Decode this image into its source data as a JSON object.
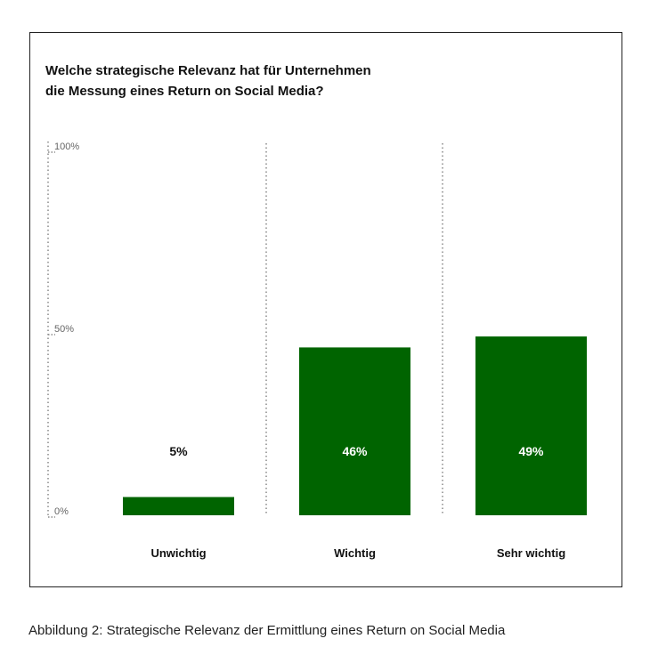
{
  "chart_data": {
    "type": "bar",
    "title": [
      "Welche strategische Relevanz hat für Unternehmen",
      "die Messung eines Return on Social Media?"
    ],
    "categories": [
      "Unwichtig",
      "Wichtig",
      "Sehr wichtig"
    ],
    "values": [
      5,
      46,
      49
    ],
    "value_labels": [
      "5%",
      "46%",
      "49%"
    ],
    "y_ticks": [
      {
        "value": 0,
        "label": "0%"
      },
      {
        "value": 50,
        "label": "50%"
      },
      {
        "value": 100,
        "label": "100%"
      }
    ],
    "ylim": [
      0,
      100
    ],
    "grid": "dotted vertical separators",
    "legend": "none",
    "colors": {
      "bar": "#006400",
      "label_inside": "#ffffff",
      "label_outside": "#111111",
      "separator": "#888888"
    }
  },
  "caption": "Abbildung 2: Strategische Relevanz der Ermittlung eines Return on Social Media"
}
